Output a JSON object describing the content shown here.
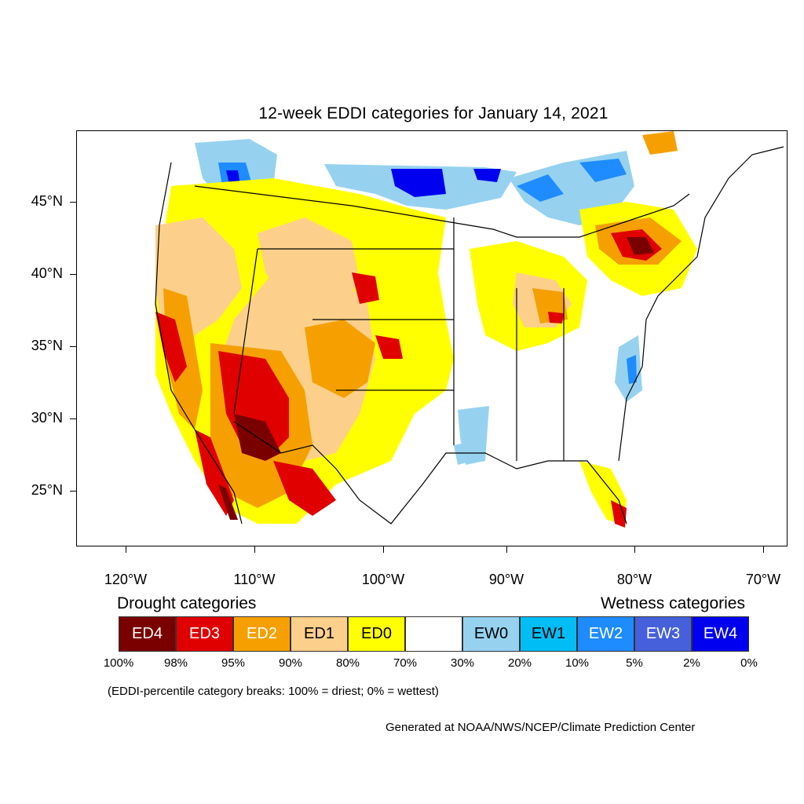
{
  "title": "12-week EDDI categories for January 14, 2021",
  "lat_labels": [
    "45°N",
    "40°N",
    "35°N",
    "30°N",
    "25°N"
  ],
  "lon_labels": [
    "120°W",
    "110°W",
    "100°W",
    "90°W",
    "80°W",
    "70°W"
  ],
  "legend": {
    "drought_heading": "Drought categories",
    "wetness_heading": "Wetness categories",
    "categories": [
      {
        "label": "ED4",
        "color": "#7a0000",
        "text_color": "#ffffff"
      },
      {
        "label": "ED3",
        "color": "#e00000",
        "text_color": "#ffffff"
      },
      {
        "label": "ED2",
        "color": "#f5a000",
        "text_color": "#ffffff"
      },
      {
        "label": "ED1",
        "color": "#fcd08a",
        "text_color": "#000000"
      },
      {
        "label": "ED0",
        "color": "#ffff00",
        "text_color": "#000000"
      },
      {
        "label": "",
        "color": "#ffffff",
        "text_color": "#000000"
      },
      {
        "label": "EW0",
        "color": "#96d2f0",
        "text_color": "#000000"
      },
      {
        "label": "EW1",
        "color": "#00bef5",
        "text_color": "#000000"
      },
      {
        "label": "EW2",
        "color": "#1e8cff",
        "text_color": "#ffffff"
      },
      {
        "label": "EW3",
        "color": "#4660dc",
        "text_color": "#ffffff"
      },
      {
        "label": "EW4",
        "color": "#0000f0",
        "text_color": "#ffffff"
      }
    ],
    "breaks": [
      "100%",
      "98%",
      "95%",
      "90%",
      "80%",
      "70%",
      "30%",
      "20%",
      "10%",
      "5%",
      "2%",
      "0%"
    ],
    "note": "(EDDI-percentile category breaks: 100% = driest; 0% = wettest)"
  },
  "credit": "Generated at NOAA/NWS/NCEP/Climate Prediction Center"
}
